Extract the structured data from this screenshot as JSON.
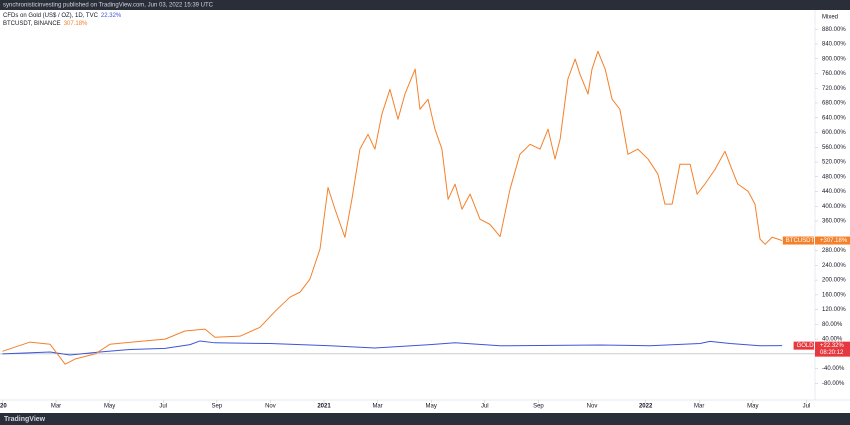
{
  "header": {
    "text": "synchronisticinvesting published on TradingView.com, Jun 03, 2022 15:39 UTC"
  },
  "footer": {
    "brand": "TradingView"
  },
  "chart_data": {
    "type": "line",
    "scale_mode": "Mixed",
    "xlim": [
      -0.09,
      30.32
    ],
    "ylim": [
      -125,
      932
    ],
    "baseline": 0,
    "xticks": [
      {
        "value": 0,
        "label": "20"
      },
      {
        "value": 2,
        "label": "Mar"
      },
      {
        "value": 4,
        "label": "May"
      },
      {
        "value": 6,
        "label": "Jul"
      },
      {
        "value": 8,
        "label": "Sep"
      },
      {
        "value": 10,
        "label": "Nov"
      },
      {
        "value": 12,
        "label": "2021"
      },
      {
        "value": 14,
        "label": "Mar"
      },
      {
        "value": 16,
        "label": "May"
      },
      {
        "value": 18,
        "label": "Jul"
      },
      {
        "value": 20,
        "label": "Sep"
      },
      {
        "value": 22,
        "label": "Nov"
      },
      {
        "value": 24,
        "label": "2022"
      },
      {
        "value": 26,
        "label": "Mar"
      },
      {
        "value": 28,
        "label": "May"
      },
      {
        "value": 30,
        "label": "Jul"
      }
    ],
    "yticks": [
      {
        "value": 880,
        "label": "880.00%"
      },
      {
        "value": 840,
        "label": "840.00%"
      },
      {
        "value": 800,
        "label": "800.00%"
      },
      {
        "value": 760,
        "label": "760.00%"
      },
      {
        "value": 720,
        "label": "720.00%"
      },
      {
        "value": 680,
        "label": "680.00%"
      },
      {
        "value": 640,
        "label": "640.00%"
      },
      {
        "value": 600,
        "label": "600.00%"
      },
      {
        "value": 560,
        "label": "560.00%"
      },
      {
        "value": 520,
        "label": "520.00%"
      },
      {
        "value": 480,
        "label": "480.00%"
      },
      {
        "value": 440,
        "label": "440.00%"
      },
      {
        "value": 400,
        "label": "400.00%"
      },
      {
        "value": 360,
        "label": "360.00%"
      },
      {
        "value": 280,
        "label": "280.00%"
      },
      {
        "value": 240,
        "label": "240.00%"
      },
      {
        "value": 200,
        "label": "200.00%"
      },
      {
        "value": 160,
        "label": "160.00%"
      },
      {
        "value": 120,
        "label": "120.00%"
      },
      {
        "value": 80,
        "label": "80.00%"
      },
      {
        "value": 40,
        "label": "40.00%"
      },
      {
        "value": -40,
        "label": "-40.00%"
      },
      {
        "value": -80,
        "label": "-80.00%"
      }
    ],
    "series": [
      {
        "name": "CFDs on Gold (US$ / OZ), 1D, TVC",
        "last_label": "22.32%",
        "tag": "GOLD",
        "tag_value": "+22.32%",
        "countdown": "08:20:12",
        "color": "#3d55d9",
        "tag_color": "#e5393f",
        "x": [
          0,
          1.78,
          2.52,
          3.64,
          4.76,
          6.07,
          7.0,
          7.37,
          7.93,
          9.99,
          12.22,
          13.9,
          15.96,
          16.89,
          18.57,
          22.3,
          24.16,
          26.03,
          26.4,
          27.15,
          28.27,
          29.09
        ],
        "values": [
          0,
          5,
          -3,
          5,
          12,
          15,
          25,
          35,
          30,
          28,
          22,
          16,
          25,
          30,
          22,
          24,
          22,
          28,
          34,
          28,
          22,
          22.32
        ]
      },
      {
        "name": "BTCUSDT, BINANCE",
        "last_label": "307.18%",
        "tag": "BTCUSDT",
        "tag_value": "+307.18%",
        "color": "#f5802a",
        "tag_color": "#f5802a",
        "x": [
          0,
          1.03,
          1.78,
          2.34,
          2.71,
          3.46,
          4.01,
          5.13,
          6.07,
          6.81,
          7.56,
          7.93,
          8.87,
          9.61,
          10.17,
          10.73,
          11.1,
          11.47,
          11.85,
          12.15,
          12.41,
          12.78,
          13.04,
          13.34,
          13.64,
          13.9,
          14.16,
          14.46,
          14.76,
          15.02,
          15.4,
          15.58,
          15.88,
          16.14,
          16.4,
          16.63,
          16.89,
          17.15,
          17.45,
          17.82,
          18.19,
          18.57,
          18.94,
          19.31,
          19.69,
          20.06,
          20.36,
          20.62,
          20.81,
          21.1,
          21.37,
          21.55,
          21.85,
          22.0,
          22.22,
          22.49,
          22.75,
          23.04,
          23.34,
          23.71,
          24.09,
          24.46,
          24.72,
          24.99,
          25.28,
          25.66,
          25.92,
          26.21,
          26.59,
          26.96,
          27.22,
          27.44,
          27.82,
          28.08,
          28.27,
          28.46,
          28.72,
          28.94,
          29.09
        ],
        "values": [
          7,
          32,
          26,
          -28,
          -14,
          0,
          26,
          34,
          40,
          62,
          67,
          45,
          48,
          72,
          115,
          154,
          167,
          202,
          284,
          451,
          392,
          316,
          419,
          555,
          595,
          555,
          650,
          717,
          636,
          704,
          772,
          663,
          690,
          609,
          555,
          419,
          460,
          392,
          433,
          365,
          351,
          318,
          446,
          541,
          568,
          555,
          609,
          528,
          582,
          745,
          799,
          758,
          704,
          772,
          820,
          772,
          690,
          663,
          541,
          555,
          528,
          487,
          406,
          406,
          514,
          514,
          433,
          460,
          500,
          549,
          500,
          460,
          441,
          406,
          311,
          297,
          316,
          311,
          307.18
        ]
      }
    ]
  }
}
